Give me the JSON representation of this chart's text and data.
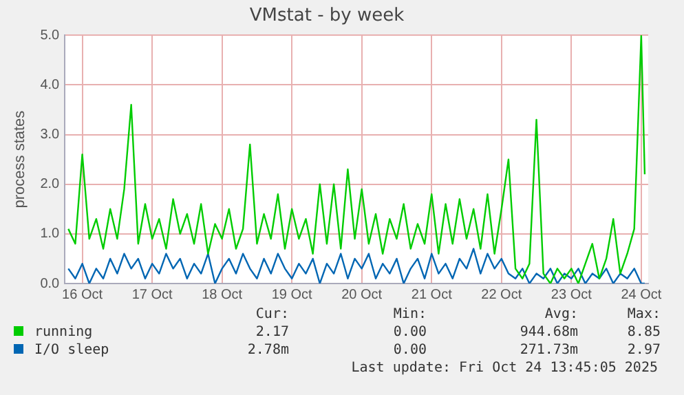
{
  "chart_data": {
    "type": "line",
    "title": "VMstat - by week",
    "ylabel": "process states",
    "x": [
      "2025-10-15T19:12",
      "2025-10-15T21:36",
      "2025-10-16T00:00",
      "2025-10-16T02:24",
      "2025-10-16T04:48",
      "2025-10-16T07:12",
      "2025-10-16T09:36",
      "2025-10-16T12:00",
      "2025-10-16T14:24",
      "2025-10-16T16:48",
      "2025-10-16T19:12",
      "2025-10-16T21:36",
      "2025-10-17T00:00",
      "2025-10-17T02:24",
      "2025-10-17T04:48",
      "2025-10-17T07:12",
      "2025-10-17T09:36",
      "2025-10-17T12:00",
      "2025-10-17T14:24",
      "2025-10-17T16:48",
      "2025-10-17T19:12",
      "2025-10-17T21:36",
      "2025-10-18T00:00",
      "2025-10-18T02:24",
      "2025-10-18T04:48",
      "2025-10-18T07:12",
      "2025-10-18T09:36",
      "2025-10-18T12:00",
      "2025-10-18T14:24",
      "2025-10-18T16:48",
      "2025-10-18T19:12",
      "2025-10-18T21:36",
      "2025-10-19T00:00",
      "2025-10-19T02:24",
      "2025-10-19T04:48",
      "2025-10-19T07:12",
      "2025-10-19T09:36",
      "2025-10-19T12:00",
      "2025-10-19T14:24",
      "2025-10-19T16:48",
      "2025-10-19T19:12",
      "2025-10-19T21:36",
      "2025-10-20T00:00",
      "2025-10-20T02:24",
      "2025-10-20T04:48",
      "2025-10-20T07:12",
      "2025-10-20T09:36",
      "2025-10-20T12:00",
      "2025-10-20T14:24",
      "2025-10-20T16:48",
      "2025-10-20T19:12",
      "2025-10-20T21:36",
      "2025-10-21T00:00",
      "2025-10-21T02:24",
      "2025-10-21T04:48",
      "2025-10-21T07:12",
      "2025-10-21T09:36",
      "2025-10-21T12:00",
      "2025-10-21T14:24",
      "2025-10-21T16:48",
      "2025-10-21T19:12",
      "2025-10-21T21:36",
      "2025-10-22T00:00",
      "2025-10-22T02:24",
      "2025-10-22T04:48",
      "2025-10-22T07:12",
      "2025-10-22T09:36",
      "2025-10-22T12:00",
      "2025-10-22T14:24",
      "2025-10-22T16:48",
      "2025-10-22T19:12",
      "2025-10-22T21:36",
      "2025-10-23T00:00",
      "2025-10-23T02:24",
      "2025-10-23T04:48",
      "2025-10-23T07:12",
      "2025-10-23T09:36",
      "2025-10-23T12:00",
      "2025-10-23T14:24",
      "2025-10-23T16:48",
      "2025-10-23T19:12",
      "2025-10-23T21:36",
      "2025-10-24T00:00",
      "2025-10-24T01:12"
    ],
    "series": [
      {
        "name": "running",
        "color": "#00cc00",
        "values": [
          1.1,
          0.8,
          2.6,
          0.9,
          1.3,
          0.7,
          1.5,
          0.9,
          1.9,
          3.6,
          0.8,
          1.6,
          0.9,
          1.3,
          0.7,
          1.7,
          1.0,
          1.4,
          0.8,
          1.6,
          0.6,
          1.2,
          0.9,
          1.5,
          0.7,
          1.1,
          2.8,
          0.8,
          1.4,
          0.9,
          1.8,
          0.7,
          1.5,
          0.9,
          1.3,
          0.6,
          2.0,
          0.8,
          2.0,
          0.7,
          2.3,
          0.9,
          1.9,
          0.8,
          1.4,
          0.6,
          1.3,
          0.9,
          1.6,
          0.7,
          1.2,
          0.8,
          1.8,
          0.6,
          1.6,
          0.8,
          1.7,
          0.9,
          1.5,
          0.7,
          1.8,
          0.6,
          1.5,
          2.5,
          0.3,
          0.1,
          0.4,
          3.3,
          0.2,
          0.0,
          0.3,
          0.1,
          0.3,
          0.0,
          0.4,
          0.8,
          0.1,
          0.5,
          1.3,
          0.2,
          0.6,
          1.1,
          5.0,
          2.2
        ]
      },
      {
        "name": "I/O sleep",
        "color": "#0066b3",
        "values": [
          0.3,
          0.1,
          0.4,
          0.0,
          0.3,
          0.1,
          0.5,
          0.2,
          0.6,
          0.3,
          0.5,
          0.1,
          0.4,
          0.2,
          0.6,
          0.3,
          0.5,
          0.1,
          0.4,
          0.2,
          0.6,
          0.0,
          0.3,
          0.5,
          0.2,
          0.6,
          0.3,
          0.1,
          0.5,
          0.2,
          0.6,
          0.3,
          0.1,
          0.4,
          0.2,
          0.5,
          0.0,
          0.4,
          0.2,
          0.6,
          0.1,
          0.5,
          0.3,
          0.6,
          0.1,
          0.4,
          0.2,
          0.5,
          0.0,
          0.3,
          0.5,
          0.1,
          0.6,
          0.2,
          0.4,
          0.1,
          0.5,
          0.3,
          0.7,
          0.2,
          0.6,
          0.3,
          0.5,
          0.2,
          0.1,
          0.3,
          0.0,
          0.2,
          0.1,
          0.3,
          0.0,
          0.2,
          0.1,
          0.3,
          0.0,
          0.2,
          0.1,
          0.3,
          0.0,
          0.2,
          0.1,
          0.3,
          0.0,
          0.0
        ]
      }
    ],
    "xlim": [
      "2025-10-15T18:00",
      "2025-10-24T02:24"
    ],
    "xticks": [
      {
        "value": "2025-10-16",
        "label": "16 Oct"
      },
      {
        "value": "2025-10-17",
        "label": "17 Oct"
      },
      {
        "value": "2025-10-18",
        "label": "18 Oct"
      },
      {
        "value": "2025-10-19",
        "label": "19 Oct"
      },
      {
        "value": "2025-10-20",
        "label": "20 Oct"
      },
      {
        "value": "2025-10-21",
        "label": "21 Oct"
      },
      {
        "value": "2025-10-22",
        "label": "22 Oct"
      },
      {
        "value": "2025-10-23",
        "label": "23 Oct"
      },
      {
        "value": "2025-10-24",
        "label": "24 Oct"
      }
    ],
    "ylim": [
      0,
      5
    ],
    "yticks": [
      {
        "value": 0,
        "label": "0.0"
      },
      {
        "value": 1,
        "label": "1.0"
      },
      {
        "value": 2,
        "label": "2.0"
      },
      {
        "value": 3,
        "label": "3.0"
      },
      {
        "value": 4,
        "label": "4.0"
      },
      {
        "value": 5,
        "label": "5.0"
      }
    ],
    "grid": true,
    "legend": "bottom",
    "marker": "none",
    "line_style": "solid",
    "annotations": [
      "Cur:",
      "Min:",
      "Avg:",
      "Max:",
      "2.17",
      "0.00",
      "944.68m",
      "8.85",
      "2.78m",
      "0.00",
      "271.73m",
      "2.97",
      "Last update: Fri Oct 24 13:45:05 2025"
    ]
  }
}
